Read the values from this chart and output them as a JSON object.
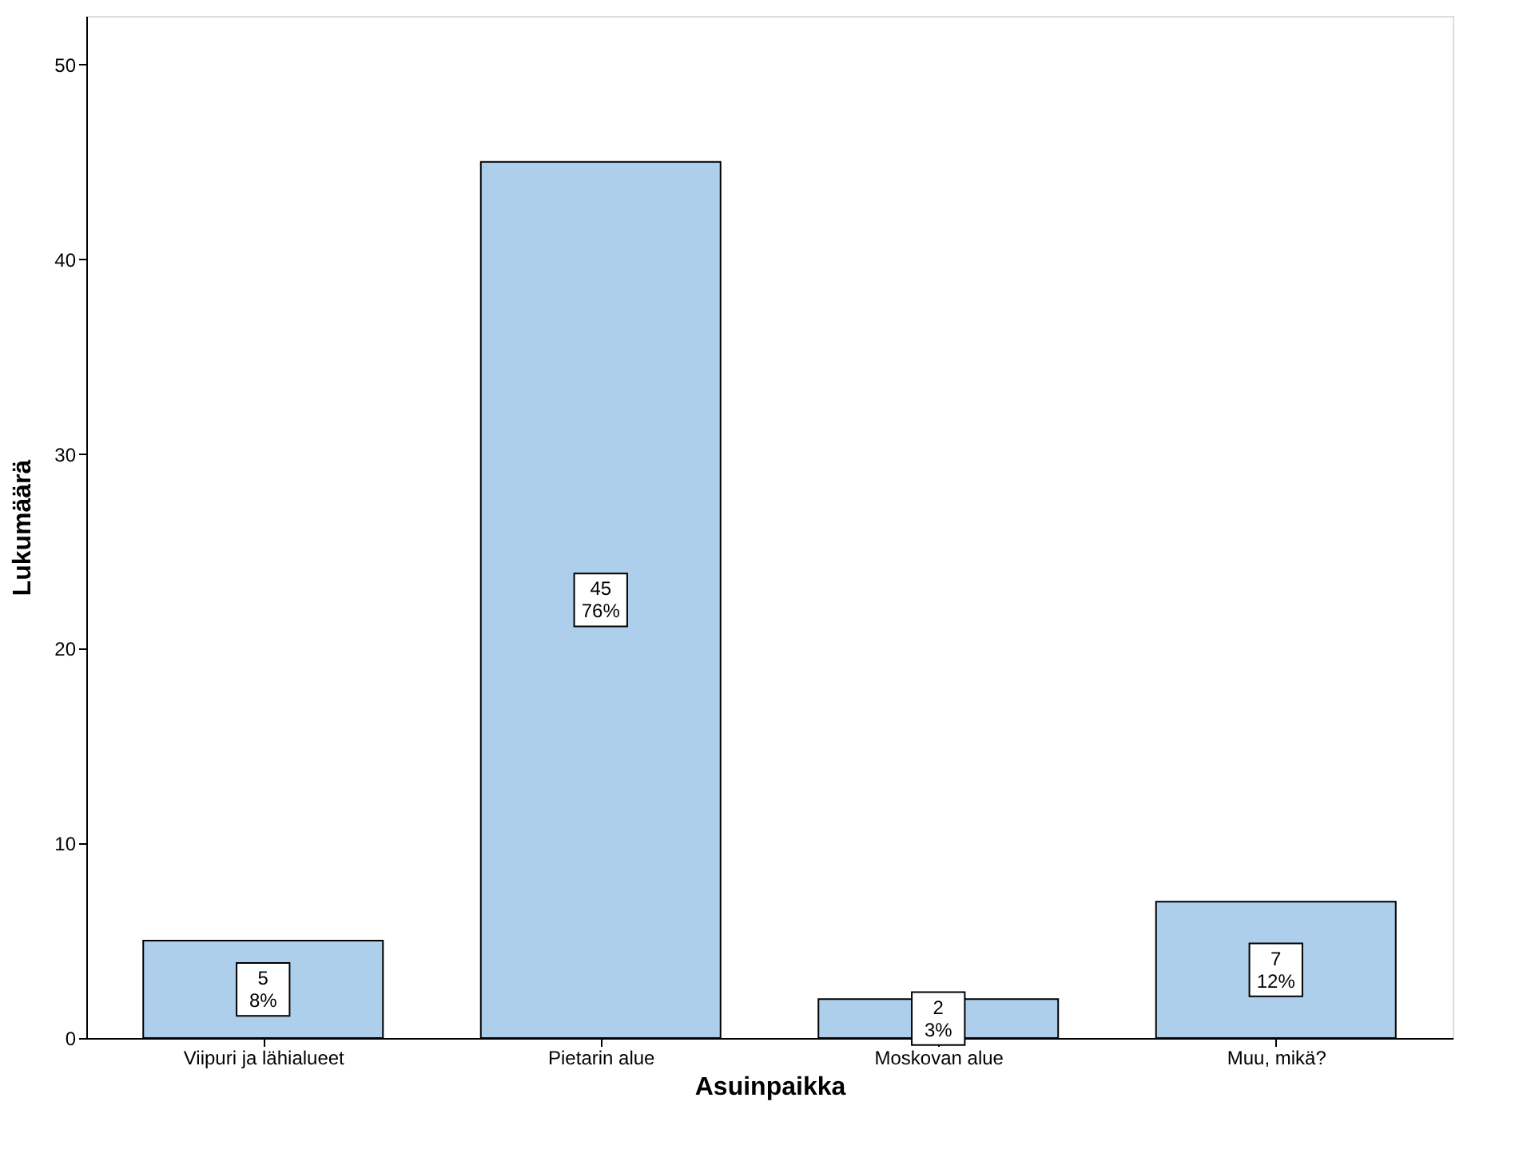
{
  "chart_data": {
    "type": "bar",
    "xlabel": "Asuinpaikka",
    "ylabel": "Lukumäärä",
    "categories": [
      "Viipuri ja lähialueet",
      "Pietarin alue",
      "Moskovan alue",
      "Muu, mikä?"
    ],
    "values": [
      5,
      45,
      2,
      7
    ],
    "color": "#aecfec",
    "value_labels": [
      "5\n8%",
      "45\n76%",
      "2\n3%",
      "7\n12%"
    ],
    "ylim": [
      0,
      52.5
    ],
    "yticks": [
      0,
      10,
      20,
      30,
      40,
      50
    ],
    "grid": false
  }
}
